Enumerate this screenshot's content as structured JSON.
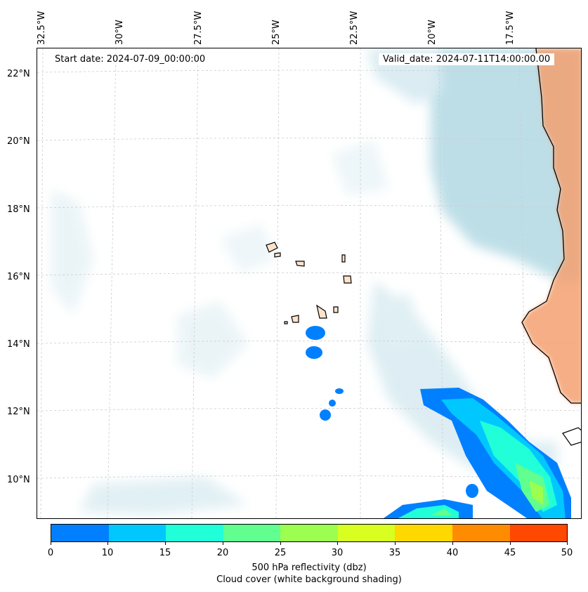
{
  "info": {
    "start_date": "Start date: 2024-07-09_00:00:00",
    "valid_date": "Valid_date: 2024-07-11T14:00:00.00"
  },
  "axes": {
    "lon_labels": [
      "32.5°W",
      "30°W",
      "27.5°W",
      "25°W",
      "22.5°W",
      "20°W",
      "17.5°W"
    ],
    "lat_labels": [
      "22°N",
      "20°N",
      "18°N",
      "16°N",
      "14°N",
      "12°N",
      "10°N"
    ]
  },
  "colorbar": {
    "ticks": [
      "0",
      "10",
      "15",
      "20",
      "25",
      "30",
      "35",
      "40",
      "45",
      "50"
    ],
    "colors": [
      "#0080ff",
      "#00c8ff",
      "#20ffd8",
      "#60ff90",
      "#9cff50",
      "#d8ff20",
      "#ffd800",
      "#ff8c00",
      "#ff4800"
    ],
    "label_line1": "500 hPa reflectivity (dbz)",
    "label_line2": "Cloud cover (white background shading)"
  },
  "map_colors": {
    "cloud": "#a8d4e0",
    "land": "#f4a070",
    "coast": "#000000",
    "grid": "#cccccc"
  }
}
